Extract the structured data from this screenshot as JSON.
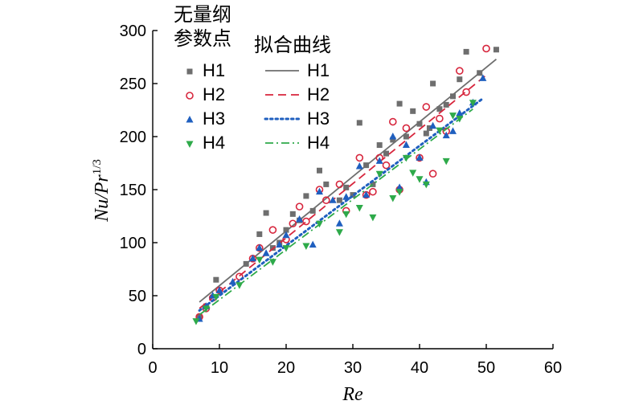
{
  "chart_data": {
    "type": "scatter",
    "xlabel": "Re",
    "ylabel_main": "Nu/Pr",
    "ylabel_sup": "1/3",
    "xlim": [
      0,
      60
    ],
    "ylim": [
      0,
      300
    ],
    "xticks": [
      0,
      10,
      20,
      30,
      40,
      50,
      60
    ],
    "yticks": [
      0,
      50,
      100,
      150,
      200,
      250,
      300
    ],
    "grid": false,
    "legend": {
      "placement": "top-left",
      "points_title_lines": [
        "无量纲",
        "参数点"
      ],
      "fit_title": "拟合曲线"
    },
    "series": [
      {
        "name": "H1",
        "color": "#6e6e6e",
        "marker": "square",
        "line_style": "solid",
        "fit": [
          [
            7,
            44
          ],
          [
            51.5,
            273
          ]
        ],
        "points": [
          [
            7,
            30
          ],
          [
            8,
            40
          ],
          [
            9.5,
            65
          ],
          [
            14,
            80
          ],
          [
            16,
            108
          ],
          [
            17,
            128
          ],
          [
            18,
            95
          ],
          [
            19,
            100
          ],
          [
            20,
            112
          ],
          [
            21,
            127
          ],
          [
            22,
            121
          ],
          [
            23,
            144
          ],
          [
            24,
            130
          ],
          [
            25,
            168
          ],
          [
            26,
            155
          ],
          [
            28,
            140
          ],
          [
            29,
            152
          ],
          [
            30,
            145
          ],
          [
            31,
            213
          ],
          [
            32,
            173
          ],
          [
            33,
            155
          ],
          [
            34,
            192
          ],
          [
            35,
            184
          ],
          [
            36,
            197
          ],
          [
            37,
            231
          ],
          [
            38,
            200
          ],
          [
            39,
            224
          ],
          [
            40,
            212
          ],
          [
            41,
            203
          ],
          [
            41.5,
            208
          ],
          [
            42,
            250
          ],
          [
            43,
            226
          ],
          [
            44,
            230
          ],
          [
            45,
            238
          ],
          [
            46,
            254
          ],
          [
            47,
            280
          ],
          [
            49,
            260
          ],
          [
            51.5,
            282
          ]
        ]
      },
      {
        "name": "H2",
        "color": "#d7263d",
        "marker": "circle",
        "line_style": "dashed",
        "fit": [
          [
            7,
            38
          ],
          [
            50,
            258
          ]
        ],
        "points": [
          [
            7,
            30
          ],
          [
            8,
            38
          ],
          [
            9,
            48
          ],
          [
            10,
            55
          ],
          [
            13,
            68
          ],
          [
            15,
            85
          ],
          [
            16,
            95
          ],
          [
            18,
            112
          ],
          [
            20,
            103
          ],
          [
            21,
            118
          ],
          [
            22,
            134
          ],
          [
            23,
            120
          ],
          [
            25,
            150
          ],
          [
            26,
            140
          ],
          [
            28,
            155
          ],
          [
            29,
            130
          ],
          [
            31,
            180
          ],
          [
            32,
            145
          ],
          [
            33,
            148
          ],
          [
            34,
            180
          ],
          [
            35,
            173
          ],
          [
            36,
            214
          ],
          [
            37,
            150
          ],
          [
            38,
            208
          ],
          [
            40,
            180
          ],
          [
            41,
            228
          ],
          [
            42,
            165
          ],
          [
            43,
            217
          ],
          [
            44,
            205
          ],
          [
            46,
            262
          ],
          [
            47,
            242
          ],
          [
            50,
            283
          ]
        ]
      },
      {
        "name": "H3",
        "color": "#1f5fbf",
        "marker": "triangle-up",
        "line_style": "dotted",
        "fit": [
          [
            7,
            36
          ],
          [
            49.5,
            236
          ]
        ],
        "points": [
          [
            7,
            28
          ],
          [
            8,
            40
          ],
          [
            9,
            50
          ],
          [
            10,
            55
          ],
          [
            12,
            63
          ],
          [
            15,
            85
          ],
          [
            16,
            95
          ],
          [
            17,
            90
          ],
          [
            19,
            98
          ],
          [
            20,
            107
          ],
          [
            22,
            122
          ],
          [
            24,
            98
          ],
          [
            25,
            148
          ],
          [
            27,
            140
          ],
          [
            28,
            118
          ],
          [
            29,
            143
          ],
          [
            31,
            172
          ],
          [
            32,
            145
          ],
          [
            34,
            177
          ],
          [
            36,
            200
          ],
          [
            37,
            152
          ],
          [
            38,
            192
          ],
          [
            40,
            180
          ],
          [
            41,
            157
          ],
          [
            42,
            210
          ],
          [
            44,
            201
          ],
          [
            45,
            205
          ],
          [
            46,
            222
          ],
          [
            48,
            232
          ],
          [
            49.5,
            255
          ]
        ]
      },
      {
        "name": "H4",
        "color": "#2eaa4a",
        "marker": "triangle-down",
        "line_style": "dashdot",
        "fit": [
          [
            7,
            32
          ],
          [
            48,
            226
          ]
        ],
        "points": [
          [
            6.5,
            26
          ],
          [
            8,
            38
          ],
          [
            9.5,
            49
          ],
          [
            13,
            60
          ],
          [
            16,
            84
          ],
          [
            18,
            82
          ],
          [
            20,
            95
          ],
          [
            23,
            97
          ],
          [
            25,
            118
          ],
          [
            28,
            110
          ],
          [
            29,
            127
          ],
          [
            31,
            133
          ],
          [
            33,
            124
          ],
          [
            34,
            165
          ],
          [
            36,
            142
          ],
          [
            37,
            148
          ],
          [
            38,
            180
          ],
          [
            39,
            166
          ],
          [
            40,
            160
          ],
          [
            41,
            155
          ],
          [
            43,
            206
          ],
          [
            44,
            177
          ],
          [
            45,
            220
          ],
          [
            46,
            217
          ],
          [
            48,
            232
          ]
        ]
      }
    ]
  }
}
